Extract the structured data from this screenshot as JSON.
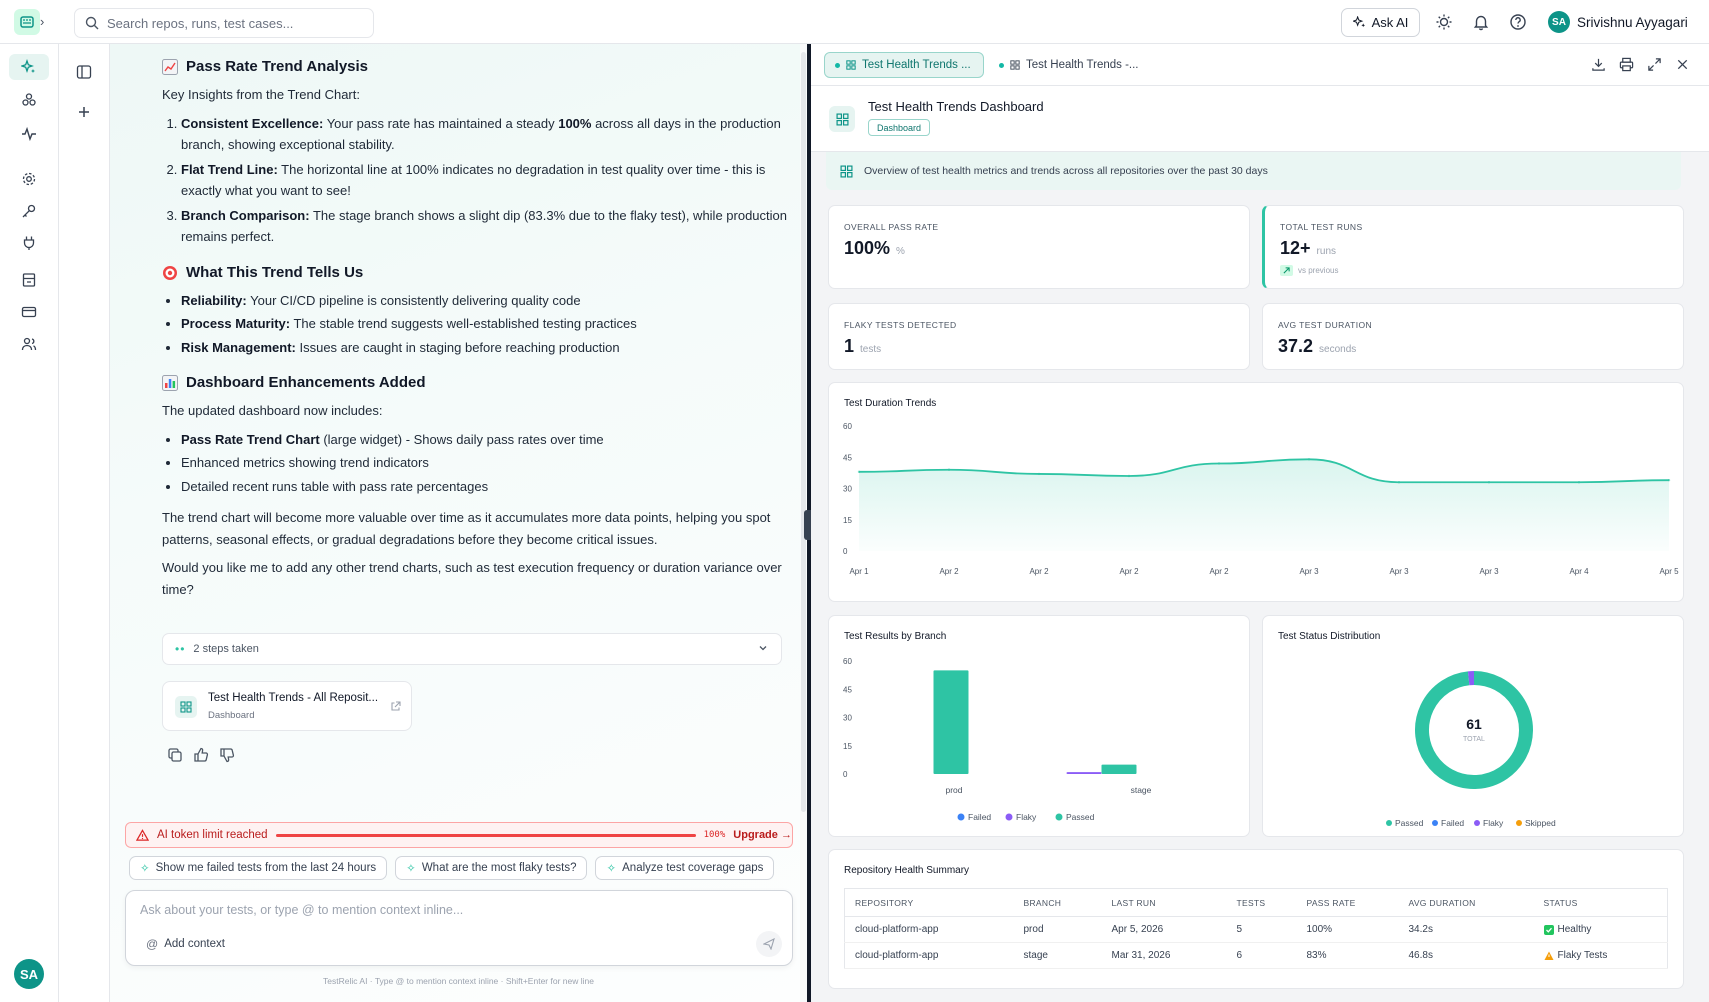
{
  "topbar": {
    "search_placeholder": "Search repos, runs, test cases...",
    "ask_ai": "Ask AI",
    "user_name": "Srivishnu Ayyagari",
    "user_initials": "SA"
  },
  "rail": {
    "avatar_initials": "SA"
  },
  "chat": {
    "section1_title": "Pass Rate Trend Analysis",
    "section1_intro": "Key Insights from the Trend Chart:",
    "insights": [
      {
        "bold": "Consistent Excellence:",
        "pre": " Your pass rate has maintained a steady ",
        "em": "100%",
        "post": " across all days in the production branch, showing exceptional stability."
      },
      {
        "bold": "Flat Trend Line:",
        "text": " The horizontal line at 100% indicates no degradation in test quality over time - this is exactly what you want to see!"
      },
      {
        "bold": "Branch Comparison:",
        "text": " The stage branch shows a slight dip (83.3% due to the flaky test), while production remains perfect."
      }
    ],
    "section2_title": "What This Trend Tells Us",
    "tells": [
      {
        "bold": "Reliability:",
        "text": " Your CI/CD pipeline is consistently delivering quality code"
      },
      {
        "bold": "Process Maturity:",
        "text": " The stable trend suggests well-established testing practices"
      },
      {
        "bold": "Risk Management:",
        "text": " Issues are caught in staging before reaching production"
      }
    ],
    "section3_title": "Dashboard Enhancements Added",
    "section3_intro": "The updated dashboard now includes:",
    "enhancements": [
      {
        "bold": "Pass Rate Trend Chart",
        "text": " (large widget) - Shows daily pass rates over time"
      },
      {
        "bold": "",
        "text": "Enhanced metrics showing trend indicators"
      },
      {
        "bold": "",
        "text": "Detailed recent runs table with pass rate percentages"
      }
    ],
    "para1": "The trend chart will become more valuable over time as it accumulates more data points, helping you spot patterns, seasonal effects, or gradual degradations before they become critical issues.",
    "para2": "Would you like me to add any other trend charts, such as test execution frequency or duration variance over time?",
    "steps_label": "2 steps taken",
    "card_title": "Test Health Trends - All Reposit...",
    "card_sub": "Dashboard",
    "limit_text": "AI token limit reached",
    "limit_pct": "100%",
    "limit_upgrade": "Upgrade →",
    "suggestions": [
      "Show me failed tests from the last 24 hours",
      "What are the most flaky tests?",
      "Analyze test coverage gaps"
    ],
    "input_placeholder": "Ask about your tests, or type @ to mention context inline...",
    "add_context": "Add context",
    "footer": "TestRelic AI · Type @ to mention context inline · Shift+Enter for new line"
  },
  "dashboard": {
    "tabs": [
      "Test Health Trends ...",
      "Test Health Trends -..."
    ],
    "title": "Test Health Trends Dashboard",
    "tag": "Dashboard",
    "overview": "Overview of test health metrics and trends across all repositories over the past 30 days",
    "metrics": {
      "pass_rate": {
        "label": "OVERALL PASS RATE",
        "value": "100%",
        "unit": "%"
      },
      "runs": {
        "label": "TOTAL TEST RUNS",
        "value": "12+",
        "unit": "runs",
        "delta": "vs previous"
      },
      "flaky": {
        "label": "FLAKY TESTS DETECTED",
        "value": "1",
        "unit": "tests"
      },
      "duration": {
        "label": "AVG TEST DURATION",
        "value": "37.2",
        "unit": "seconds"
      }
    },
    "duration_title": "Test Duration Trends",
    "branch_title": "Test Results by Branch",
    "status_title": "Test Status Distribution",
    "donut_total": "61",
    "donut_label": "TOTAL",
    "table_title": "Repository Health Summary",
    "table_headers": [
      "REPOSITORY",
      "BRANCH",
      "LAST RUN",
      "TESTS",
      "PASS RATE",
      "AVG DURATION",
      "STATUS"
    ],
    "table_rows": [
      [
        "cloud-platform-app",
        "prod",
        "Apr 5, 2026",
        "5",
        "100%",
        "34.2s",
        "Healthy"
      ],
      [
        "cloud-platform-app",
        "stage",
        "Mar 31, 2026",
        "6",
        "83%",
        "46.8s",
        "Flaky Tests"
      ]
    ]
  },
  "chart_data": [
    {
      "type": "area",
      "title": "Test Duration Trends",
      "x": [
        "Apr 1",
        "Apr 2",
        "Apr 2",
        "Apr 2",
        "Apr 2",
        "Apr 3",
        "Apr 3",
        "Apr 3",
        "Apr 4",
        "Apr 5"
      ],
      "values": [
        38,
        39,
        37,
        36,
        42,
        44,
        33,
        33,
        33,
        34
      ],
      "ylim": [
        0,
        60
      ],
      "yticks": [
        0,
        15,
        30,
        45,
        60
      ],
      "color": "#2ec4a4"
    },
    {
      "type": "bar",
      "title": "Test Results by Branch",
      "categories": [
        "prod",
        "stage"
      ],
      "series": [
        {
          "name": "Failed",
          "values": [
            0,
            0
          ],
          "color": "#3b82f6"
        },
        {
          "name": "Flaky",
          "values": [
            0,
            1
          ],
          "color": "#8b5cf6"
        },
        {
          "name": "Passed",
          "values": [
            55,
            5
          ],
          "color": "#2ec4a4"
        }
      ],
      "ylim": [
        0,
        60
      ],
      "yticks": [
        0,
        15,
        30,
        45,
        60
      ],
      "legend": "bottom"
    },
    {
      "type": "pie",
      "title": "Test Status Distribution",
      "categories": [
        "Passed",
        "Failed",
        "Flaky",
        "Skipped"
      ],
      "values": [
        60,
        0,
        1,
        0
      ],
      "colors": [
        "#2ec4a4",
        "#3b82f6",
        "#8b5cf6",
        "#f59e0b"
      ],
      "legend": "bottom"
    }
  ]
}
